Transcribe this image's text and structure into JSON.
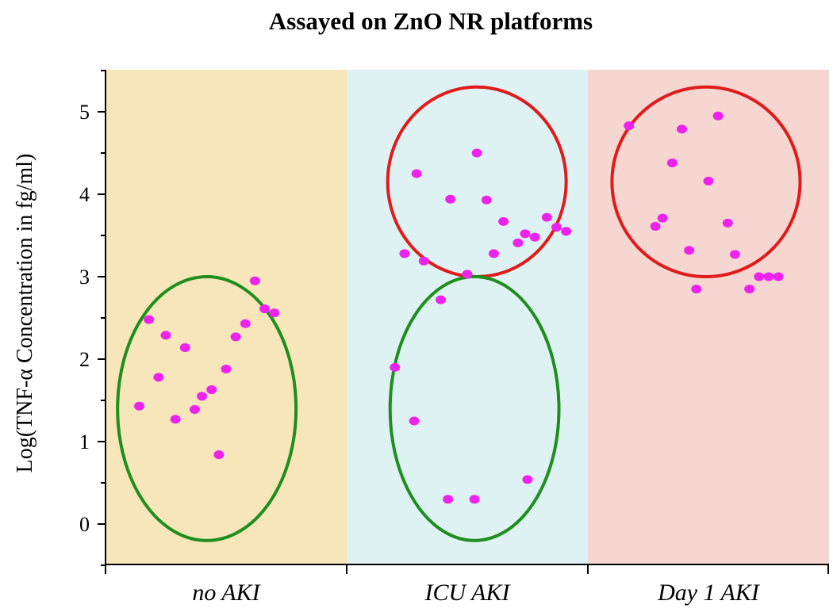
{
  "chart_data": {
    "type": "scatter",
    "title": "Assayed on ZnO NR platforms",
    "ylabel": "Log(TNF-α Concentration in  fg/ml)",
    "xlabel": "",
    "ylim": [
      -0.5,
      5.5
    ],
    "yticks": [
      "0",
      "1",
      "2",
      "3",
      "4",
      "5"
    ],
    "categories": [
      "no AKI",
      "ICU AKI",
      "Day 1 AKI"
    ],
    "category_colors": [
      "#f6e6b9",
      "#dff2f3",
      "#f6d6d0"
    ],
    "point_color": "#ee22ee",
    "ellipse_colors": {
      "low": "#1e8e1e",
      "high": "#e01b1b"
    },
    "groups": [
      {
        "name": "no AKI",
        "points": [
          [
            0.14,
            1.43
          ],
          [
            0.18,
            2.48
          ],
          [
            0.22,
            1.78
          ],
          [
            0.25,
            2.29
          ],
          [
            0.29,
            1.27
          ],
          [
            0.33,
            2.14
          ],
          [
            0.37,
            1.39
          ],
          [
            0.4,
            1.55
          ],
          [
            0.44,
            1.63
          ],
          [
            0.47,
            0.84
          ],
          [
            0.5,
            1.88
          ],
          [
            0.54,
            2.27
          ],
          [
            0.58,
            2.43
          ],
          [
            0.62,
            2.95
          ],
          [
            0.66,
            2.61
          ],
          [
            0.7,
            2.56
          ]
        ],
        "clusters": [
          {
            "color": "low",
            "center": [
              0.42,
              1.4
            ],
            "rx": 0.37,
            "ry": 1.6
          }
        ]
      },
      {
        "name": "ICU AKI",
        "points": [
          [
            0.2,
            1.9
          ],
          [
            0.24,
            3.28
          ],
          [
            0.28,
            1.25
          ],
          [
            0.29,
            4.25
          ],
          [
            0.32,
            3.19
          ],
          [
            0.39,
            2.72
          ],
          [
            0.42,
            0.3
          ],
          [
            0.43,
            3.94
          ],
          [
            0.5,
            3.03
          ],
          [
            0.53,
            0.3
          ],
          [
            0.54,
            4.5
          ],
          [
            0.58,
            3.93
          ],
          [
            0.61,
            3.28
          ],
          [
            0.65,
            3.67
          ],
          [
            0.71,
            3.41
          ],
          [
            0.74,
            3.52
          ],
          [
            0.75,
            0.54
          ],
          [
            0.78,
            3.48
          ],
          [
            0.83,
            3.72
          ],
          [
            0.87,
            3.6
          ],
          [
            0.91,
            3.55
          ]
        ],
        "clusters": [
          {
            "color": "high",
            "center": [
              0.54,
              4.15
            ],
            "rx": 0.37,
            "ry": 1.15
          },
          {
            "color": "low",
            "center": [
              0.53,
              1.4
            ],
            "rx": 0.35,
            "ry": 1.6
          }
        ]
      },
      {
        "name": "Day 1 AKI",
        "points": [
          [
            0.17,
            4.83
          ],
          [
            0.28,
            3.61
          ],
          [
            0.31,
            3.71
          ],
          [
            0.35,
            4.38
          ],
          [
            0.39,
            4.79
          ],
          [
            0.42,
            3.32
          ],
          [
            0.45,
            2.85
          ],
          [
            0.5,
            4.16
          ],
          [
            0.54,
            4.95
          ],
          [
            0.58,
            3.65
          ],
          [
            0.61,
            3.27
          ],
          [
            0.67,
            2.85
          ],
          [
            0.71,
            3.0
          ],
          [
            0.75,
            3.0
          ],
          [
            0.79,
            3.0
          ]
        ],
        "clusters": [
          {
            "color": "high",
            "center": [
              0.49,
              4.15
            ],
            "rx": 0.39,
            "ry": 1.15
          }
        ]
      }
    ]
  }
}
